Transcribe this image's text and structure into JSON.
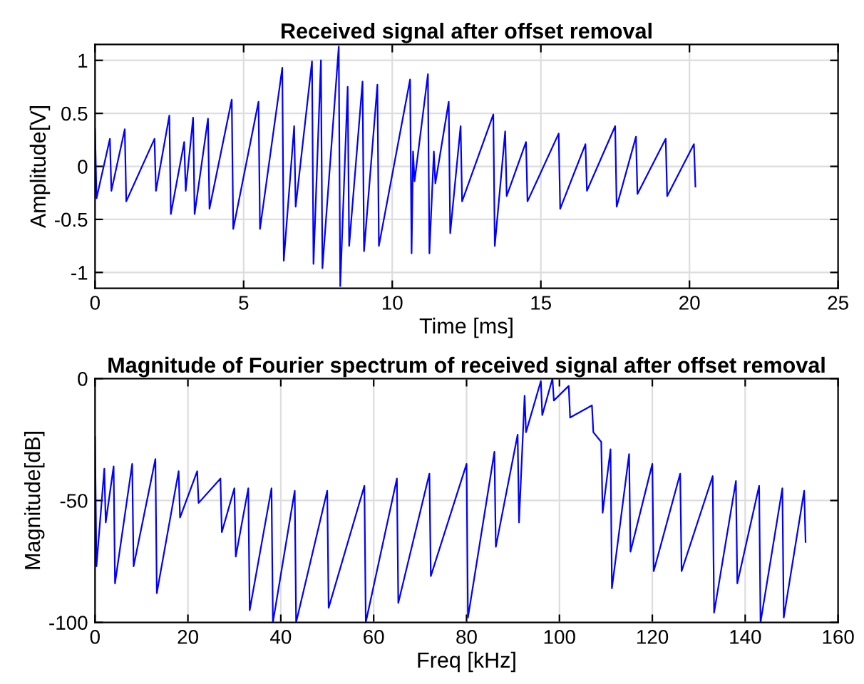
{
  "chart_data": [
    {
      "type": "line",
      "title": "Received signal after offset removal",
      "xlabel": "Time [ms]",
      "ylabel": "Amplitude[V]",
      "xlim": [
        0,
        25
      ],
      "xticks": [
        0,
        5,
        10,
        15,
        20,
        25
      ],
      "ylim": [
        -1.15,
        1.15
      ],
      "yticks": [
        -1,
        -0.5,
        0,
        0.5,
        1
      ],
      "grid": true,
      "legend": false,
      "series": [
        {
          "color": "#0000ff",
          "x": [
            0,
            0.05,
            0.5,
            0.55,
            1,
            1.05,
            2,
            2.05,
            2.5,
            2.55,
            3,
            3.05,
            3.3,
            3.35,
            3.8,
            3.85,
            4.6,
            4.65,
            5.5,
            5.55,
            6.3,
            6.35,
            6.7,
            6.75,
            7.3,
            7.35,
            7.6,
            7.65,
            8.2,
            8.25,
            8.5,
            8.55,
            9,
            9.05,
            9.5,
            9.55,
            10.6,
            10.65,
            10.7,
            10.75,
            11.2,
            11.25,
            11.4,
            11.45,
            11.9,
            11.95,
            12.3,
            12.35,
            13.4,
            13.45,
            13.8,
            13.85,
            14.5,
            14.55,
            15.6,
            15.65,
            16.5,
            16.55,
            17.5,
            17.55,
            18.2,
            18.25,
            19.2,
            19.25,
            20.15,
            20.2
          ],
          "values": [
            0.35,
            -0.3,
            0.26,
            -0.23,
            0.35,
            -0.33,
            0.26,
            -0.23,
            0.48,
            -0.45,
            0.23,
            -0.23,
            0.46,
            -0.45,
            0.45,
            -0.4,
            0.63,
            -0.59,
            0.61,
            -0.59,
            0.93,
            -0.89,
            0.38,
            -0.38,
            0.99,
            -0.92,
            1.0,
            -0.96,
            1.13,
            -1.13,
            0.75,
            -0.75,
            0.8,
            -0.8,
            0.77,
            -0.75,
            0.82,
            -0.82,
            0.14,
            -0.14,
            0.87,
            -0.82,
            0.14,
            -0.16,
            0.61,
            -0.63,
            0.38,
            -0.33,
            0.49,
            -0.75,
            0.33,
            -0.28,
            0.23,
            -0.33,
            0.31,
            -0.4,
            0.21,
            -0.23,
            0.38,
            -0.38,
            0.28,
            -0.26,
            0.26,
            -0.28,
            0.21,
            -0.19
          ]
        }
      ]
    },
    {
      "type": "line",
      "title": "Magnitude of Fourier spectrum of received signal after offset removal",
      "xlabel": "Freq [kHz]",
      "ylabel": "Magnitude[dB]",
      "xlim": [
        0,
        160
      ],
      "xticks": [
        0,
        20,
        40,
        60,
        80,
        100,
        120,
        140,
        160
      ],
      "ylim": [
        -100,
        0
      ],
      "yticks": [
        -100,
        -50,
        0
      ],
      "grid": true,
      "legend": false,
      "series": [
        {
          "color": "#0000ff",
          "x": [
            0,
            0.3,
            2,
            2.3,
            4,
            4.3,
            8,
            8.3,
            13,
            13.3,
            18,
            18.3,
            22,
            22.3,
            27,
            27.3,
            30,
            30.3,
            33,
            33.3,
            38,
            38.3,
            43,
            43.3,
            50,
            50.3,
            58,
            58.3,
            65,
            65.3,
            72,
            72.3,
            80,
            80.3,
            86,
            86.3,
            91,
            91.3,
            92.5,
            92.8,
            96,
            96.3,
            98.5,
            98.8,
            102,
            102.3,
            107,
            107.3,
            109,
            109.3,
            111,
            111.3,
            115,
            115.3,
            120,
            120.3,
            126,
            126.3,
            133,
            133.3,
            138,
            138.3,
            143,
            143.3,
            148,
            148.3,
            152.7,
            153
          ],
          "values": [
            -24,
            -77,
            -37,
            -59,
            -36,
            -84,
            -35,
            -77,
            -33,
            -88,
            -38,
            -57,
            -38,
            -51,
            -41,
            -63,
            -45,
            -73,
            -45,
            -95,
            -45,
            -100,
            -46,
            -100,
            -46,
            -94,
            -44,
            -100,
            -41,
            -92,
            -39,
            -81,
            -35,
            -98,
            -30,
            -69,
            -23,
            -59,
            -7,
            -22,
            -1,
            -15,
            0,
            -9,
            -3,
            -16,
            -11,
            -22,
            -26,
            -55,
            -29,
            -86,
            -31,
            -71,
            -35,
            -79,
            -39,
            -79,
            -40,
            -96,
            -42,
            -84,
            -44,
            -100,
            -45,
            -98,
            -46,
            -67
          ]
        }
      ]
    }
  ]
}
